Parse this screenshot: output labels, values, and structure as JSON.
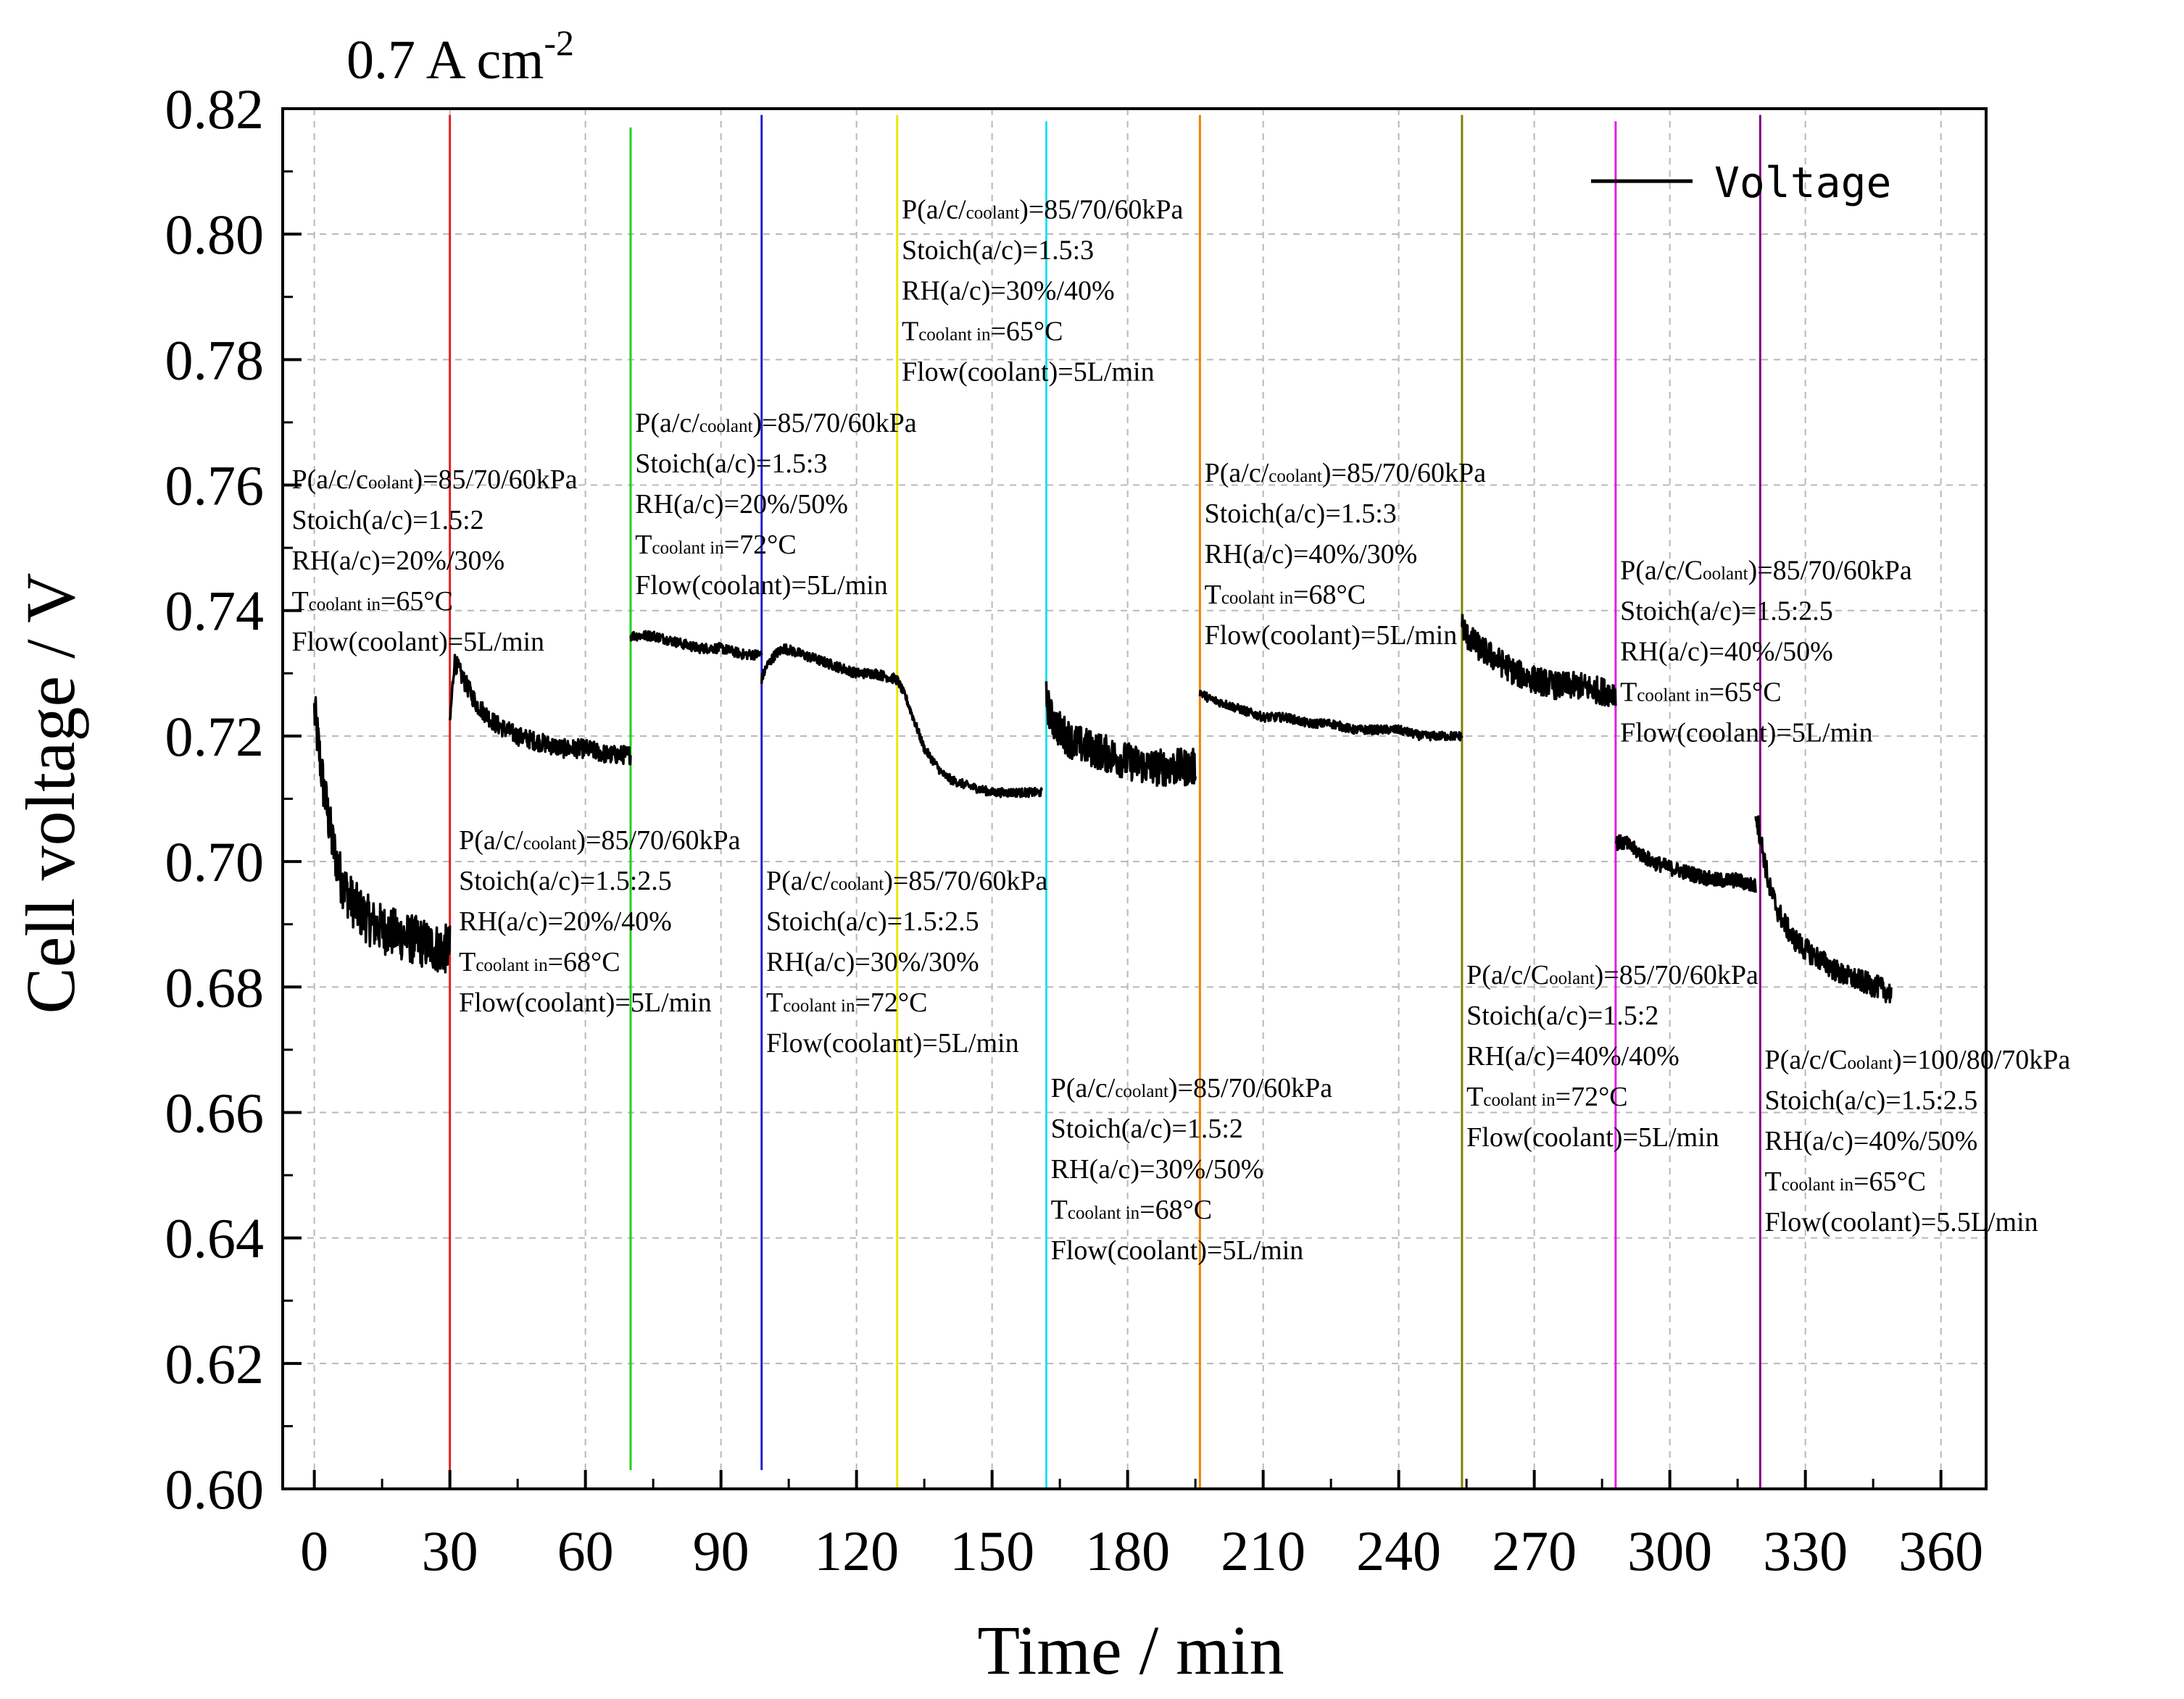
{
  "chart_data": {
    "type": "line",
    "title": "0.7 A cm",
    "title_superscript": "-2",
    "xlabel": "Time / min",
    "ylabel": "Cell voltage / V",
    "xlim": [
      -7,
      370
    ],
    "ylim": [
      0.6,
      0.82
    ],
    "x_ticks": [
      "0",
      "30",
      "60",
      "90",
      "120",
      "150",
      "180",
      "210",
      "240",
      "270",
      "300",
      "330",
      "360"
    ],
    "y_ticks": [
      "0.60",
      "0.62",
      "0.64",
      "0.66",
      "0.68",
      "0.70",
      "0.72",
      "0.74",
      "0.76",
      "0.78",
      "0.80",
      "0.82"
    ],
    "grid": true,
    "legend": {
      "position": "top-right",
      "entries": [
        "Voltage"
      ]
    },
    "series": [
      {
        "name": "Voltage",
        "color": "#000000",
        "segments": [
          {
            "x": [
              0,
              2,
              4,
              6,
              8,
              10,
              13,
              16,
              20,
              24,
              28,
              30
            ],
            "y": [
              0.724,
              0.712,
              0.703,
              0.697,
              0.694,
              0.692,
              0.69,
              0.689,
              0.688,
              0.687,
              0.686,
              0.686
            ],
            "noise": 0.004
          },
          {
            "x": [
              30,
              31,
              33,
              36,
              40,
              45,
              50,
              55,
              60,
              65,
              70
            ],
            "y": [
              0.722,
              0.732,
              0.729,
              0.725,
              0.722,
              0.72,
              0.719,
              0.718,
              0.718,
              0.717,
              0.717
            ],
            "noise": 0.0015
          },
          {
            "x": [
              70,
              75,
              80,
              85,
              90,
              95,
              99
            ],
            "y": [
              0.736,
              0.736,
              0.735,
              0.734,
              0.734,
              0.733,
              0.733
            ],
            "noise": 0.0008
          },
          {
            "x": [
              99,
              100,
              102,
              104,
              108,
              112,
              116,
              120,
              124,
              129
            ],
            "y": [
              0.729,
              0.731,
              0.733,
              0.734,
              0.733,
              0.732,
              0.731,
              0.73,
              0.73,
              0.729
            ],
            "noise": 0.0008
          },
          {
            "x": [
              129,
              131,
              133,
              135,
              137,
              139,
              141,
              145,
              150,
              155,
              161
            ],
            "y": [
              0.729,
              0.726,
              0.722,
              0.718,
              0.716,
              0.714,
              0.713,
              0.712,
              0.711,
              0.711,
              0.711
            ],
            "noise": 0.0007
          },
          {
            "x": [
              162,
              163,
              165,
              168,
              172,
              176,
              180,
              185,
              190,
              195
            ],
            "y": [
              0.726,
              0.723,
              0.721,
              0.719,
              0.718,
              0.717,
              0.716,
              0.715,
              0.715,
              0.715
            ],
            "noise": 0.003
          },
          {
            "x": [
              196,
              198,
              202,
              206,
              210,
              215,
              220,
              225,
              230,
              235,
              240,
              245,
              250,
              254
            ],
            "y": [
              0.727,
              0.726,
              0.725,
              0.724,
              0.723,
              0.723,
              0.722,
              0.722,
              0.721,
              0.721,
              0.721,
              0.72,
              0.72,
              0.72
            ],
            "noise": 0.0007
          },
          {
            "x": [
              254,
              255,
              258,
              262,
              266,
              270,
              275,
              280,
              286,
              288
            ],
            "y": [
              0.738,
              0.736,
              0.734,
              0.732,
              0.73,
              0.729,
              0.728,
              0.728,
              0.727,
              0.727
            ],
            "noise": 0.0022
          },
          {
            "x": [
              288,
              290,
              292,
              296,
              300,
              305,
              310,
              315,
              319
            ],
            "y": [
              0.703,
              0.703,
              0.702,
              0.7,
              0.699,
              0.698,
              0.697,
              0.697,
              0.696
            ],
            "noise": 0.0012
          },
          {
            "x": [
              319,
              320,
              321,
              322,
              324,
              327,
              330,
              334,
              338,
              342,
              346,
              349
            ],
            "y": [
              0.708,
              0.704,
              0.7,
              0.696,
              0.692,
              0.688,
              0.686,
              0.684,
              0.682,
              0.681,
              0.68,
              0.679
            ],
            "noise": 0.0018
          }
        ]
      }
    ],
    "marker_lines": [
      {
        "x": 30,
        "y_range": [
          0.6,
          0.819
        ],
        "color": "#e02020"
      },
      {
        "x": 70,
        "y_range": [
          0.603,
          0.817
        ],
        "color": "#20d020"
      },
      {
        "x": 99,
        "y_range": [
          0.603,
          0.819
        ],
        "color": "#2020d0"
      },
      {
        "x": 129,
        "y_range": [
          0.6,
          0.819
        ],
        "color": "#e8e800"
      },
      {
        "x": 162,
        "y_range": [
          0.6,
          0.818
        ],
        "color": "#20e0f0"
      },
      {
        "x": 196,
        "y_range": [
          0.6,
          0.819
        ],
        "color": "#f08000"
      },
      {
        "x": 254,
        "y_range": [
          0.6,
          0.819
        ],
        "color": "#808000"
      },
      {
        "x": 288,
        "y_range": [
          0.6,
          0.818
        ],
        "color": "#e020e0"
      },
      {
        "x": 320,
        "y_range": [
          0.6,
          0.819
        ],
        "color": "#800080"
      }
    ],
    "annotations": [
      {
        "x": -5,
        "y": 0.7595,
        "lines": [
          [
            {
              "t": "P("
            },
            {
              "t": "a/c/c",
              "s": false
            },
            {
              "t": "oolant",
              "s": true
            },
            {
              "t": ")=85/70/60kPa"
            }
          ],
          [
            {
              "t": "Stoich(a/c)=1.5:2"
            }
          ],
          [
            {
              "t": "RH(a/c)=20%/30%"
            }
          ],
          [
            {
              "t": "T",
              "s": false
            },
            {
              "t": "coolant in",
              "s": true
            },
            {
              "t": "=65°C"
            }
          ],
          [
            {
              "t": "Flow(coolant)=5L/min"
            }
          ]
        ]
      },
      {
        "x": 32,
        "y": 0.702,
        "lines": [
          [
            {
              "t": "P("
            },
            {
              "t": "a/c/",
              "s": false
            },
            {
              "t": "coolant",
              "s": true
            },
            {
              "t": ")=85/70/60kPa"
            }
          ],
          [
            {
              "t": "Stoich(a/c)=1.5:2.5"
            }
          ],
          [
            {
              "t": "RH(a/c)=20%/40%"
            }
          ],
          [
            {
              "t": "T"
            },
            {
              "t": "coolant in",
              "s": true
            },
            {
              "t": "=68°C"
            }
          ],
          [
            {
              "t": "Flow(coolant)=5L/min"
            }
          ]
        ]
      },
      {
        "x": 71,
        "y": 0.7685,
        "lines": [
          [
            {
              "t": "P("
            },
            {
              "t": "a/c/",
              "s": false
            },
            {
              "t": "coolant",
              "s": true
            },
            {
              "t": ")=85/70/60kPa"
            }
          ],
          [
            {
              "t": "Stoich(a/c)=1.5:3"
            }
          ],
          [
            {
              "t": "RH(a/c)=20%/50%"
            }
          ],
          [
            {
              "t": "T"
            },
            {
              "t": "coolant in",
              "s": true
            },
            {
              "t": "=72°C"
            }
          ],
          [
            {
              "t": "Flow(coolant)=5L/min"
            }
          ]
        ]
      },
      {
        "x": 100,
        "y": 0.6955,
        "lines": [
          [
            {
              "t": "P("
            },
            {
              "t": "a/c/",
              "s": false
            },
            {
              "t": "coolant",
              "s": true
            },
            {
              "t": ")=85/70/60kPa"
            }
          ],
          [
            {
              "t": "Stoich(a/c)=1.5:2.5"
            }
          ],
          [
            {
              "t": "RH(a/c)=30%/30%"
            }
          ],
          [
            {
              "t": "T"
            },
            {
              "t": "coolant in",
              "s": true
            },
            {
              "t": "=72°C"
            }
          ],
          [
            {
              "t": "Flow(coolant)=5L/min"
            }
          ]
        ]
      },
      {
        "x": 130,
        "y": 0.8025,
        "lines": [
          [
            {
              "t": "P("
            },
            {
              "t": "a/c/",
              "s": false
            },
            {
              "t": "coolant",
              "s": true
            },
            {
              "t": ")=85/70/60kPa"
            }
          ],
          [
            {
              "t": "Stoich(a/c)=1.5:3"
            }
          ],
          [
            {
              "t": "RH(a/c)=30%/40%"
            }
          ],
          [
            {
              "t": "T"
            },
            {
              "t": "coolant in",
              "s": true
            },
            {
              "t": "=65°C"
            }
          ],
          [
            {
              "t": "Flow(coolant)=5L/min"
            }
          ]
        ]
      },
      {
        "x": 163,
        "y": 0.6625,
        "lines": [
          [
            {
              "t": "P("
            },
            {
              "t": "a/c/",
              "s": false
            },
            {
              "t": "coolant",
              "s": true
            },
            {
              "t": ")=85/70/60kPa"
            }
          ],
          [
            {
              "t": "Stoich(a/c)=1.5:2"
            }
          ],
          [
            {
              "t": "RH(a/c)=30%/50%"
            }
          ],
          [
            {
              "t": "T"
            },
            {
              "t": "coolant in",
              "s": true
            },
            {
              "t": "=68°C"
            }
          ],
          [
            {
              "t": "Flow(coolant)=5L/min"
            }
          ]
        ]
      },
      {
        "x": 197,
        "y": 0.7605,
        "lines": [
          [
            {
              "t": "P("
            },
            {
              "t": "a/c/",
              "s": false
            },
            {
              "t": "coolant",
              "s": true
            },
            {
              "t": ")=85/70/60kPa"
            }
          ],
          [
            {
              "t": "Stoich(a/c)=1.5:3"
            }
          ],
          [
            {
              "t": "RH(a/c)=40%/30%"
            }
          ],
          [
            {
              "t": "T"
            },
            {
              "t": "coolant in",
              "s": true
            },
            {
              "t": "=68°C"
            }
          ],
          [
            {
              "t": "Flow(coolant)=5L/min"
            }
          ]
        ]
      },
      {
        "x": 255,
        "y": 0.6805,
        "lines": [
          [
            {
              "t": "P("
            },
            {
              "t": "a/c/C",
              "s": false
            },
            {
              "t": "oolant",
              "s": true
            },
            {
              "t": ")=85/70/60kPa"
            }
          ],
          [
            {
              "t": "Stoich(a/c)=1.5:2"
            }
          ],
          [
            {
              "t": "RH(a/c)=40%/40%"
            }
          ],
          [
            {
              "t": "T"
            },
            {
              "t": "coolant in",
              "s": true
            },
            {
              "t": "=72°C"
            }
          ],
          [
            {
              "t": "Flow(coolant)=5L/min"
            }
          ]
        ]
      },
      {
        "x": 289,
        "y": 0.745,
        "lines": [
          [
            {
              "t": "P("
            },
            {
              "t": "a/c/C",
              "s": false
            },
            {
              "t": "oolant",
              "s": true
            },
            {
              "t": ")=85/70/60kPa"
            }
          ],
          [
            {
              "t": "Stoich(a/c)=1.5:2.5"
            }
          ],
          [
            {
              "t": "RH(a/c)=40%/50%"
            }
          ],
          [
            {
              "t": "T"
            },
            {
              "t": "coolant in",
              "s": true
            },
            {
              "t": "=65°C"
            }
          ],
          [
            {
              "t": "Flow(coolant)=5L/min"
            }
          ]
        ]
      },
      {
        "x": 321,
        "y": 0.667,
        "lines": [
          [
            {
              "t": "P("
            },
            {
              "t": "a/c/C",
              "s": false
            },
            {
              "t": "oolant",
              "s": true
            },
            {
              "t": ")=100/80/70kPa"
            }
          ],
          [
            {
              "t": "Stoich(a/c)=1.5:2.5"
            }
          ],
          [
            {
              "t": "RH(a/c)=40%/50%"
            }
          ],
          [
            {
              "t": "T"
            },
            {
              "t": "coolant in",
              "s": true
            },
            {
              "t": "=65°C"
            }
          ],
          [
            {
              "t": "Flow(coolant)=5.5L/min"
            }
          ]
        ]
      }
    ]
  }
}
